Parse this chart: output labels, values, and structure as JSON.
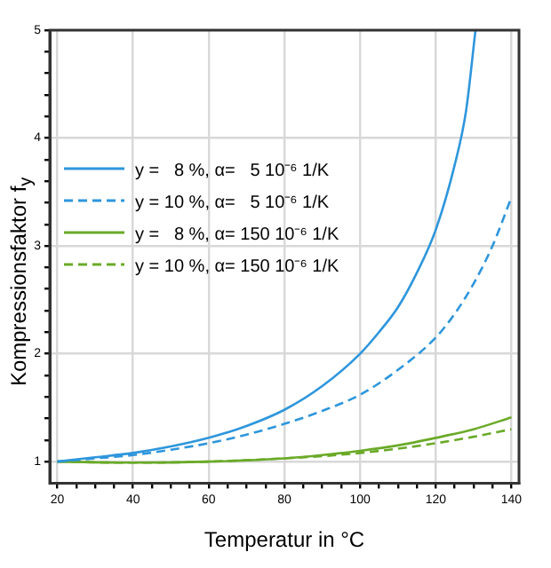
{
  "chart_data": {
    "type": "line",
    "xlabel": "Temperatur in °C",
    "ylabel": "Kompressionsfaktor f$_{y}$",
    "series": [
      {
        "name": "y =   8 %, α=   5 10⁻⁶ 1/K",
        "color": "#2e96dc",
        "line_style": "solid",
        "x": [
          20,
          30,
          40,
          50,
          60,
          70,
          80,
          90,
          100,
          105,
          110,
          115,
          120,
          125,
          128,
          130.5
        ],
        "values": [
          1,
          1.04,
          1.08,
          1.14,
          1.22,
          1.33,
          1.48,
          1.7,
          2.0,
          2.2,
          2.43,
          2.75,
          3.15,
          3.75,
          4.25,
          5
        ]
      },
      {
        "name": "y = 10 %, α=   5 10⁻⁶ 1/K",
        "color": "#2e96dc",
        "line_style": "dashed",
        "x": [
          20,
          30,
          40,
          50,
          60,
          70,
          80,
          90,
          100,
          110,
          120,
          125,
          130,
          135,
          140
        ],
        "values": [
          1,
          1.03,
          1.06,
          1.11,
          1.17,
          1.25,
          1.35,
          1.47,
          1.62,
          1.85,
          2.15,
          2.37,
          2.65,
          3.0,
          3.45
        ]
      },
      {
        "name": "y =   8 %, α= 150 10⁻⁶ 1/K",
        "color": "#6aaa28",
        "line_style": "solid",
        "x": [
          20,
          40,
          60,
          80,
          90,
          100,
          110,
          120,
          130,
          140
        ],
        "values": [
          1,
          0.99,
          1.0,
          1.03,
          1.06,
          1.1,
          1.15,
          1.22,
          1.3,
          1.41
        ]
      },
      {
        "name": "y = 10 %, α= 150 10⁻⁶ 1/K",
        "color": "#6aaa28",
        "line_style": "dashed",
        "x": [
          20,
          40,
          60,
          80,
          90,
          100,
          110,
          120,
          130,
          140
        ],
        "values": [
          1,
          0.99,
          1.0,
          1.03,
          1.05,
          1.08,
          1.12,
          1.17,
          1.23,
          1.3
        ]
      }
    ],
    "xlim": [
      18,
      142
    ],
    "ylim": [
      0.8,
      5
    ],
    "xticks": [
      20,
      {
        "value": 25,
        "label": null
      },
      {
        "value": 30,
        "label": null
      },
      {
        "value": 35,
        "label": null
      },
      40,
      {
        "value": 45,
        "label": null
      },
      {
        "value": 50,
        "label": null
      },
      {
        "value": 55,
        "label": null
      },
      60,
      {
        "value": 65,
        "label": null
      },
      {
        "value": 70,
        "label": null
      },
      {
        "value": 75,
        "label": null
      },
      80,
      {
        "value": 85,
        "label": null
      },
      {
        "value": 90,
        "label": null
      },
      {
        "value": 95,
        "label": null
      },
      100,
      {
        "value": 105,
        "label": null
      },
      {
        "value": 110,
        "label": null
      },
      {
        "value": 115,
        "label": null
      },
      120,
      {
        "value": 125,
        "label": null
      },
      {
        "value": 130,
        "label": null
      },
      {
        "value": 135,
        "label": null
      },
      140
    ],
    "yticks": [
      1,
      {
        "value": 1.2,
        "label": null
      },
      {
        "value": 1.4,
        "label": null
      },
      {
        "value": 1.6,
        "label": null
      },
      {
        "value": 1.8,
        "label": null
      },
      2,
      {
        "value": 2.2,
        "label": null
      },
      {
        "value": 2.4,
        "label": null
      },
      {
        "value": 2.6,
        "label": null
      },
      {
        "value": 2.8,
        "label": null
      },
      3,
      {
        "value": 3.2,
        "label": null
      },
      {
        "value": 3.4,
        "label": null
      },
      {
        "value": 3.6,
        "label": null
      },
      {
        "value": 3.8,
        "label": null
      },
      4,
      {
        "value": 4.2,
        "label": null
      },
      {
        "value": 4.4,
        "label": null
      },
      {
        "value": 4.6,
        "label": null
      },
      {
        "value": 4.8,
        "label": null
      },
      5
    ],
    "grid": true,
    "legend": "top left",
    "marker": "none"
  }
}
